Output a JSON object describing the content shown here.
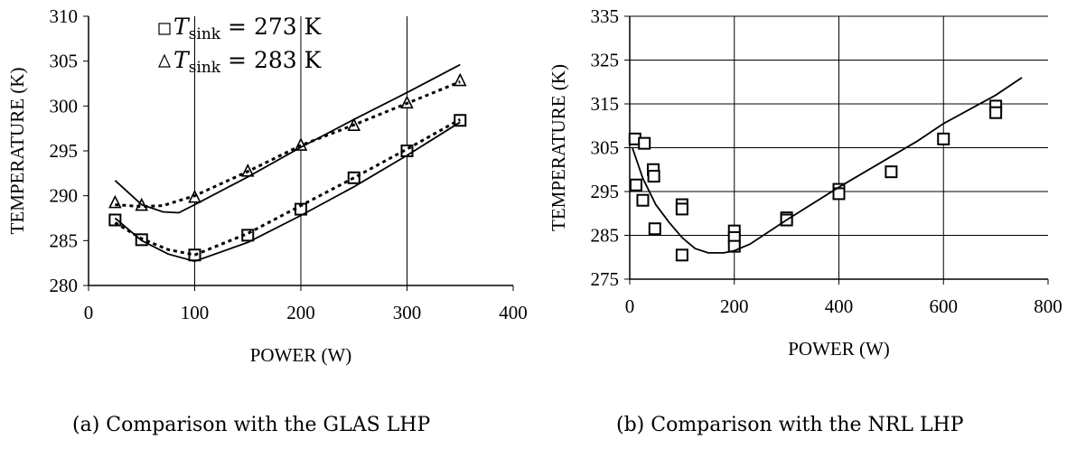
{
  "chart_data": [
    {
      "type": "line",
      "title": "",
      "xlabel": "POWER (W)",
      "ylabel": "TEMPERATURE (K)",
      "xlim": [
        0,
        400
      ],
      "ylim": [
        280,
        310
      ],
      "x_ticks": [
        0,
        100,
        200,
        300,
        400
      ],
      "y_ticks": [
        280,
        285,
        290,
        295,
        300,
        305,
        310
      ],
      "x_tick_labels": [
        "0",
        "100",
        "200",
        "300",
        "400"
      ],
      "y_tick_labels": [
        "280",
        "285",
        "290",
        "295",
        "300",
        "305",
        "310"
      ],
      "grid": "vertical lines at x ticks",
      "legend": {
        "placement": "top-left",
        "entries": [
          {
            "marker": "square",
            "prefix": "T",
            "subscript": "sink",
            "text": " = 273 K"
          },
          {
            "marker": "triangle",
            "prefix": "T",
            "subscript": "sink",
            "text": " = 283 K"
          }
        ]
      },
      "series": [
        {
          "style": "markers-square",
          "x": [
            25,
            50,
            100,
            150,
            200,
            250,
            300,
            350
          ],
          "y": [
            287.3,
            285.1,
            283.4,
            285.6,
            288.5,
            292.0,
            295.0,
            298.4
          ]
        },
        {
          "style": "markers-triangle",
          "x": [
            25,
            50,
            100,
            150,
            200,
            250,
            300,
            350
          ],
          "y": [
            289.2,
            288.9,
            289.8,
            292.7,
            295.6,
            297.8,
            300.3,
            302.8
          ]
        },
        {
          "style": "solid",
          "x": [
            25,
            50,
            70,
            85,
            100,
            150,
            200,
            250,
            300,
            350
          ],
          "y": [
            291.7,
            289.0,
            288.2,
            288.1,
            289.0,
            292.1,
            295.4,
            298.5,
            301.5,
            304.6
          ]
        },
        {
          "style": "dotted",
          "x": [
            25,
            50,
            70,
            100,
            150,
            200,
            250,
            300,
            350
          ],
          "y": [
            289.0,
            288.8,
            288.9,
            290.0,
            292.7,
            295.6,
            297.9,
            300.3,
            302.7
          ]
        },
        {
          "style": "solid",
          "x": [
            25,
            50,
            75,
            100,
            150,
            200,
            250,
            300,
            350
          ],
          "y": [
            287.5,
            285.0,
            283.5,
            282.7,
            284.8,
            287.8,
            291.0,
            294.5,
            298.2
          ]
        },
        {
          "style": "dotted",
          "x": [
            25,
            50,
            75,
            100,
            150,
            200,
            250,
            300,
            350
          ],
          "y": [
            287.0,
            285.2,
            284.0,
            283.4,
            285.8,
            288.9,
            292.0,
            295.2,
            298.5
          ]
        }
      ]
    },
    {
      "type": "line",
      "title": "",
      "xlabel": "POWER (W)",
      "ylabel": "TEMPERATURE (K)",
      "xlim": [
        0,
        800
      ],
      "ylim": [
        275,
        335
      ],
      "x_ticks": [
        0,
        200,
        400,
        600,
        800
      ],
      "y_ticks": [
        275,
        285,
        295,
        305,
        315,
        325,
        335
      ],
      "x_tick_labels": [
        "0",
        "200",
        "400",
        "600",
        "800"
      ],
      "y_tick_labels": [
        "275",
        "285",
        "295",
        "305",
        "315",
        "325",
        "335"
      ],
      "grid": "both",
      "series": [
        {
          "style": "markers-square",
          "x": [
            10,
            12,
            25,
            28,
            45,
            46,
            48,
            100,
            100,
            100,
            200,
            200,
            200,
            300,
            300,
            400,
            400,
            500,
            600,
            700,
            700
          ],
          "y": [
            307,
            296.5,
            293,
            306,
            300,
            298.5,
            286.5,
            292,
            291,
            280.5,
            286,
            284.5,
            282.5,
            289,
            288.5,
            295.5,
            294.5,
            299.5,
            307,
            314.5,
            313
          ],
          "legend": false
        },
        {
          "style": "solid",
          "x": [
            5,
            25,
            50,
            75,
            100,
            125,
            150,
            180,
            200,
            230,
            300,
            400,
            500,
            550,
            600,
            700,
            750
          ],
          "y": [
            305,
            298,
            292,
            288,
            284.5,
            282,
            281,
            281,
            281.5,
            283,
            288.5,
            296,
            303,
            306.5,
            310.5,
            317,
            321
          ]
        }
      ]
    }
  ],
  "captions": {
    "a": "(a) Comparison with the GLAS LHP",
    "b": "(b) Comparison with the NRL LHP"
  }
}
